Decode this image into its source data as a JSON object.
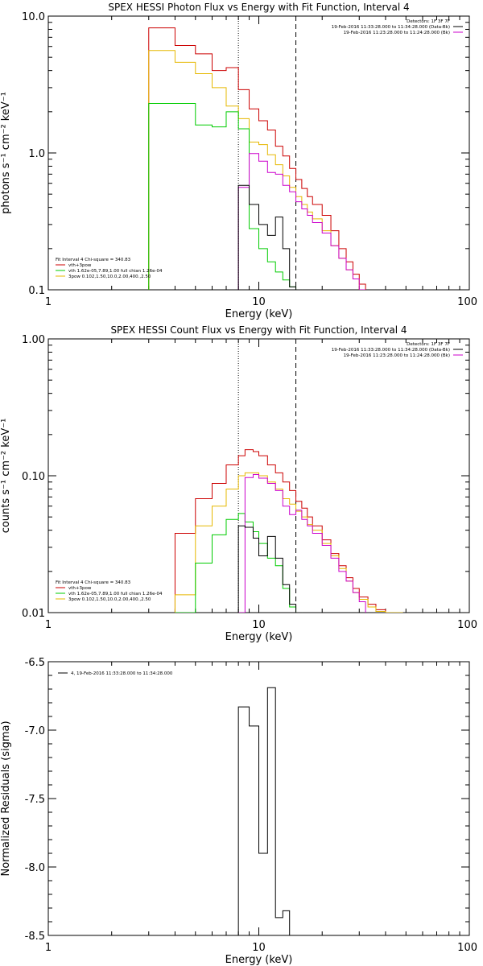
{
  "chart_data": [
    {
      "type": "line",
      "title": "SPEX HESSI Photon Flux vs Energy with Fit Function, Interval 4",
      "xlabel": "Energy (keV)",
      "ylabel": "photons s⁻¹ cm⁻² keV⁻¹",
      "x_scale": "log",
      "y_scale": "log",
      "xlim": [
        1,
        100
      ],
      "ylim": [
        0.1,
        10
      ],
      "x_tick_labels": [
        "1",
        "10",
        "100"
      ],
      "y_tick_labels": [
        "0.1",
        "1.0",
        "10.0"
      ],
      "markers": [
        8.0,
        15.0
      ],
      "legend_right": [
        {
          "text": "Detectors: 1F 3F 7F",
          "color": ""
        },
        {
          "text": "19-Feb-2016 11:33:28.000 to 11:34:28.000 (Data-Bk)",
          "color": "#000000"
        },
        {
          "text": "19-Feb-2016 11:23:28.000 to 11:24:28.000 (Bk)",
          "color": "#cc00cc"
        }
      ],
      "legend_left": [
        {
          "text": "Fit Interval 4   Chi-square = 340.83",
          "color": ""
        },
        {
          "text": "vth+3pow",
          "color": "#cc0000"
        },
        {
          "text": "vth 1.62e-05,7.89,1.00  full chian 1.26e-04",
          "color": "#00cc00"
        },
        {
          "text": "3pow 0.102,1.50,10.0,2.00,400.,2.50",
          "color": "#e6b800"
        }
      ],
      "series": [
        {
          "color": "#cc0000",
          "x": [
            3,
            4,
            5,
            6,
            7,
            8,
            9,
            10,
            11,
            12,
            13,
            14,
            15,
            16,
            17,
            18,
            20,
            22,
            24,
            26,
            28,
            30
          ],
          "y": [
            8.2,
            6.1,
            5.3,
            4.0,
            4.2,
            2.9,
            2.1,
            1.72,
            1.47,
            1.12,
            0.95,
            0.77,
            0.64,
            0.55,
            0.48,
            0.42,
            0.35,
            0.27,
            0.2,
            0.16,
            0.13,
            0.11
          ]
        },
        {
          "color": "#e6b800",
          "x": [
            3,
            4,
            5,
            6,
            7,
            8,
            9,
            10,
            11,
            12,
            13,
            14,
            15,
            16,
            17,
            18,
            20,
            22,
            24,
            26,
            28,
            30
          ],
          "y": [
            5.6,
            4.6,
            3.8,
            3.0,
            2.2,
            1.78,
            1.2,
            1.15,
            0.97,
            0.82,
            0.68,
            0.56,
            0.48,
            0.42,
            0.37,
            0.33,
            0.27,
            0.21,
            0.17,
            0.14,
            0.12,
            0.1
          ]
        },
        {
          "color": "#00cc00",
          "x": [
            3,
            4,
            5,
            6,
            7,
            8,
            9,
            10,
            11,
            12,
            13,
            14,
            15
          ],
          "y": [
            2.3,
            2.3,
            1.6,
            1.55,
            2.0,
            1.5,
            0.28,
            0.2,
            0.16,
            0.135,
            0.118,
            0.105,
            0.1
          ]
        },
        {
          "color": "#cc00cc",
          "x": [
            8,
            9,
            10,
            11,
            12,
            13,
            14,
            15,
            16,
            17,
            18,
            20,
            22,
            24,
            26,
            28,
            30
          ],
          "y": [
            0.56,
            0.99,
            0.87,
            0.72,
            0.7,
            0.58,
            0.52,
            0.44,
            0.39,
            0.35,
            0.31,
            0.26,
            0.21,
            0.17,
            0.14,
            0.12,
            0.1
          ]
        },
        {
          "color": "#000000",
          "x": [
            8,
            9,
            10,
            11,
            12,
            13,
            14,
            15
          ],
          "y": [
            0.58,
            0.42,
            0.3,
            0.25,
            0.34,
            0.2,
            0.105,
            0.1
          ]
        }
      ]
    },
    {
      "type": "line",
      "title": "SPEX HESSI Count Flux vs Energy with Fit Function, Interval 4",
      "xlabel": "Energy (keV)",
      "ylabel": "counts s⁻¹ cm⁻² keV⁻¹",
      "x_scale": "log",
      "y_scale": "log",
      "xlim": [
        1,
        100
      ],
      "ylim": [
        0.01,
        1
      ],
      "x_tick_labels": [
        "1",
        "10",
        "100"
      ],
      "y_tick_labels": [
        "0.01",
        "0.10",
        "1.00"
      ],
      "markers": [
        8.0,
        15.0
      ],
      "legend_right": [
        {
          "text": "Detectors: 1F 3F 7F",
          "color": ""
        },
        {
          "text": "19-Feb-2016 11:33:28.000 to 11:34:28.000 (Data-Bk)",
          "color": "#000000"
        },
        {
          "text": "19-Feb-2016 11:23:28.000 to 11:24:28.000 (Bk)",
          "color": "#cc00cc"
        }
      ],
      "legend_left": [
        {
          "text": "Fit Interval 4   Chi-square = 340.83",
          "color": ""
        },
        {
          "text": "vth+3pow",
          "color": "#cc0000"
        },
        {
          "text": "vth 1.62e-05,7.89,1.00  full chian 1.26e-04",
          "color": "#00cc00"
        },
        {
          "text": "3pow 0.102,1.50,10.0,2.00,400.,2.50",
          "color": "#e6b800"
        }
      ],
      "series": [
        {
          "color": "#cc0000",
          "x": [
            4,
            5,
            6,
            7,
            8,
            8.6,
            9.4,
            10,
            11,
            12,
            13,
            14,
            15,
            16,
            17,
            18,
            20,
            22,
            24,
            26,
            28,
            30,
            33,
            36,
            40,
            44
          ],
          "y": [
            0.038,
            0.068,
            0.088,
            0.12,
            0.14,
            0.155,
            0.15,
            0.14,
            0.12,
            0.105,
            0.09,
            0.078,
            0.065,
            0.058,
            0.05,
            0.043,
            0.034,
            0.027,
            0.022,
            0.018,
            0.015,
            0.013,
            0.0115,
            0.0105,
            0.01,
            0.01
          ]
        },
        {
          "color": "#e6b800",
          "x": [
            4,
            5,
            6,
            7,
            8,
            8.6,
            9.4,
            10,
            11,
            12,
            13,
            14,
            15,
            16,
            17,
            18,
            20,
            22,
            24,
            26,
            28,
            30,
            33,
            36,
            40,
            44
          ],
          "y": [
            0.0135,
            0.043,
            0.06,
            0.08,
            0.1,
            0.105,
            0.105,
            0.1,
            0.09,
            0.08,
            0.068,
            0.062,
            0.055,
            0.05,
            0.044,
            0.04,
            0.032,
            0.026,
            0.021,
            0.017,
            0.014,
            0.0125,
            0.011,
            0.0102,
            0.01,
            0.01
          ]
        },
        {
          "color": "#00cc00",
          "x": [
            4,
            5,
            6,
            7,
            8,
            8.6,
            9.4,
            10,
            11,
            12,
            13,
            14,
            15
          ],
          "y": [
            0.01,
            0.023,
            0.037,
            0.048,
            0.053,
            0.046,
            0.039,
            0.032,
            0.025,
            0.022,
            0.015,
            0.011,
            0.01
          ]
        },
        {
          "color": "#cc00cc",
          "x": [
            8,
            8.6,
            9.4,
            10,
            11,
            12,
            13,
            14,
            15,
            16,
            17,
            18,
            20,
            22,
            24,
            26,
            28,
            30
          ],
          "y": [
            0.01,
            0.097,
            0.102,
            0.096,
            0.088,
            0.078,
            0.06,
            0.052,
            0.056,
            0.048,
            0.043,
            0.038,
            0.031,
            0.025,
            0.02,
            0.017,
            0.014,
            0.012
          ]
        },
        {
          "color": "#000000",
          "x": [
            8,
            8.6,
            9.4,
            10,
            11,
            12,
            13,
            14,
            15
          ],
          "y": [
            0.043,
            0.042,
            0.035,
            0.026,
            0.036,
            0.025,
            0.016,
            0.0115,
            0.01
          ]
        }
      ]
    },
    {
      "type": "line",
      "title": "",
      "xlabel": "Energy (keV)",
      "ylabel": "Normalized Residuals (sigma)",
      "x_scale": "log",
      "y_scale": "linear",
      "xlim": [
        1,
        100
      ],
      "ylim": [
        -8.5,
        -6.5
      ],
      "x_tick_labels": [
        "1",
        "10",
        "100"
      ],
      "y_tick_labels": [
        "-8.5",
        "-8.0",
        "-7.5",
        "-7.0",
        "-6.5"
      ],
      "legend_right": [],
      "legend_left": [],
      "legend_top": [
        {
          "text": "4, 19-Feb-2016 11:33:28.000 to 11:34:28.000",
          "color": "#000000"
        }
      ],
      "series": [
        {
          "color": "#000000",
          "x": [
            8,
            9,
            10,
            11,
            12,
            13,
            14,
            15
          ],
          "y": [
            -6.83,
            -6.97,
            -7.9,
            -6.69,
            -8.37,
            -8.32,
            -8.5,
            -8.5
          ]
        }
      ]
    }
  ]
}
